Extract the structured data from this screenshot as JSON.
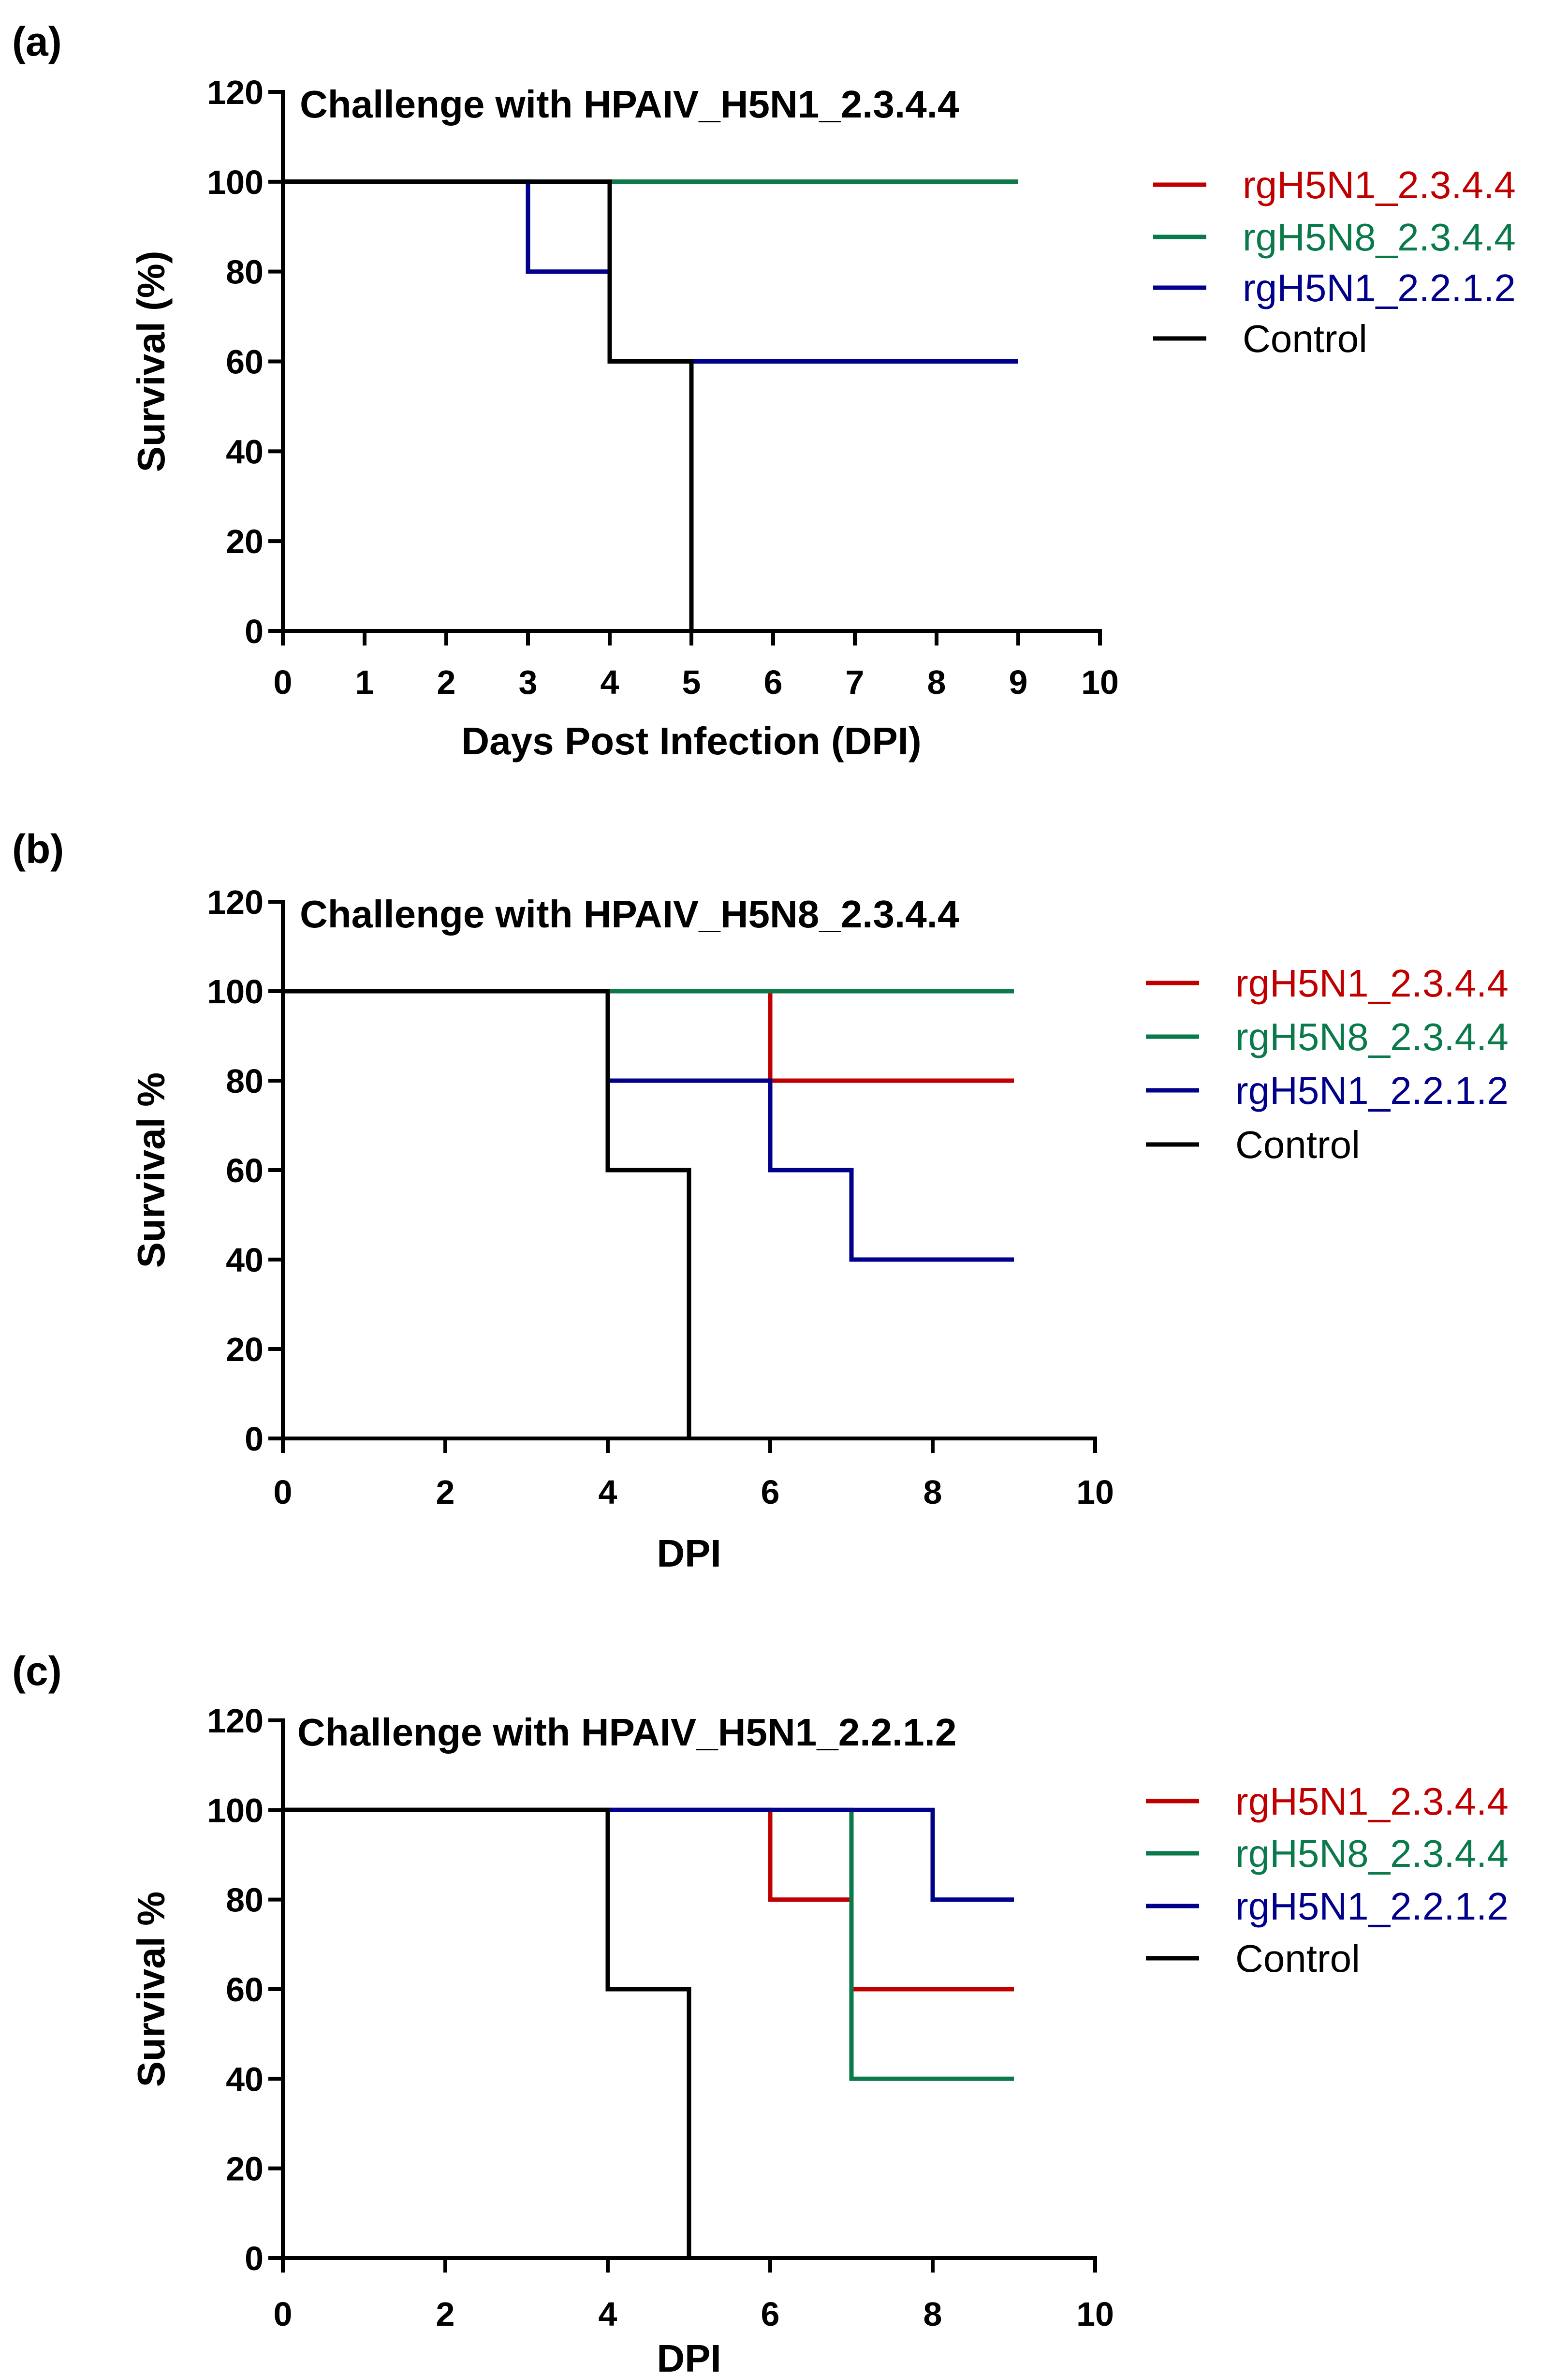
{
  "chart_data": [
    {
      "type": "line",
      "step": true,
      "panel_label": "(a)",
      "title": "Challenge with HPAIV_H5N1_2.3.4.4",
      "xlabel": "Days Post Infection (DPI)",
      "ylabel": "Survival (%)",
      "xlim": [
        0,
        10
      ],
      "ylim": [
        0,
        120
      ],
      "xticks": [
        0,
        1,
        2,
        3,
        4,
        5,
        6,
        7,
        8,
        9,
        10
      ],
      "yticks": [
        0,
        20,
        40,
        60,
        80,
        100,
        120
      ],
      "legend_position": "right",
      "series": [
        {
          "name": "rgH5N1_2.3.4.4",
          "color": "#c00000",
          "x": [
            0,
            9
          ],
          "y": [
            100,
            100
          ]
        },
        {
          "name": "rgH5N8_2.3.4.4",
          "color": "#0a7a4a",
          "x": [
            0,
            9
          ],
          "y": [
            100,
            100
          ]
        },
        {
          "name": "rgH5N1_2.2.1.2",
          "color": "#00008b",
          "x": [
            0,
            3,
            4,
            9
          ],
          "y": [
            100,
            80,
            60,
            60
          ]
        },
        {
          "name": "Control",
          "color": "#000000",
          "x": [
            0,
            4,
            5
          ],
          "y": [
            100,
            60,
            0
          ]
        }
      ]
    },
    {
      "type": "line",
      "step": true,
      "panel_label": "(b)",
      "title": "Challenge with HPAIV_H5N8_2.3.4.4",
      "xlabel": "DPI",
      "ylabel": "Survival %",
      "xlim": [
        0,
        10
      ],
      "ylim": [
        0,
        120
      ],
      "xticks": [
        0,
        2,
        4,
        6,
        8,
        10
      ],
      "yticks": [
        0,
        20,
        40,
        60,
        80,
        100,
        120
      ],
      "legend_position": "right",
      "series": [
        {
          "name": "rgH5N1_2.3.4.4",
          "color": "#c00000",
          "x": [
            0,
            6,
            9
          ],
          "y": [
            100,
            80,
            80
          ]
        },
        {
          "name": "rgH5N8_2.3.4.4",
          "color": "#0a7a4a",
          "x": [
            0,
            9
          ],
          "y": [
            100,
            100
          ]
        },
        {
          "name": "rgH5N1_2.2.1.2",
          "color": "#00008b",
          "x": [
            0,
            4,
            6,
            7,
            9
          ],
          "y": [
            100,
            80,
            60,
            40,
            40
          ]
        },
        {
          "name": "Control",
          "color": "#000000",
          "x": [
            0,
            4,
            5
          ],
          "y": [
            100,
            60,
            0
          ]
        }
      ]
    },
    {
      "type": "line",
      "step": true,
      "panel_label": "(c)",
      "title": "Challenge with HPAIV_H5N1_2.2.1.2",
      "xlabel": "DPI",
      "ylabel": "Survival %",
      "xlim": [
        0,
        10
      ],
      "ylim": [
        0,
        120
      ],
      "xticks": [
        0,
        2,
        4,
        6,
        8,
        10
      ],
      "yticks": [
        0,
        20,
        40,
        60,
        80,
        100,
        120
      ],
      "legend_position": "right",
      "series": [
        {
          "name": "rgH5N1_2.3.4.4",
          "color": "#c00000",
          "x": [
            0,
            6,
            7,
            9
          ],
          "y": [
            100,
            80,
            60,
            60
          ]
        },
        {
          "name": "rgH5N8_2.3.4.4",
          "color": "#0a7a4a",
          "x": [
            0,
            7,
            9
          ],
          "y": [
            100,
            40,
            40
          ]
        },
        {
          "name": "rgH5N1_2.2.1.2",
          "color": "#00008b",
          "x": [
            0,
            8,
            9
          ],
          "y": [
            100,
            80,
            80
          ]
        },
        {
          "name": "Control",
          "color": "#000000",
          "x": [
            0,
            4,
            5
          ],
          "y": [
            100,
            60,
            0
          ]
        }
      ]
    }
  ]
}
